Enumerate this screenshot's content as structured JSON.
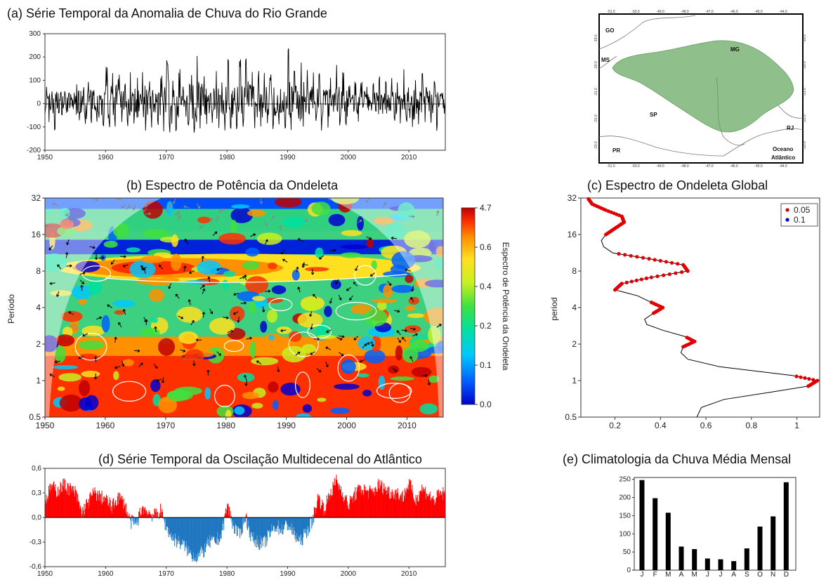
{
  "chart_data": [
    {
      "id": "a",
      "type": "line",
      "title": "(a) Série Temporal da Anomalia de Chuva do Rio Grande",
      "xlim": [
        1950,
        2016
      ],
      "ylim": [
        -200,
        300
      ],
      "xticks": [
        "1950",
        "1960",
        "1970",
        "1980",
        "1990",
        "2000",
        "2010"
      ],
      "yticks": [
        "-200",
        "-100",
        "0",
        "100",
        "200",
        "300"
      ],
      "x": [
        1950,
        1951,
        1952,
        1953,
        1954,
        1955,
        1956,
        1957,
        1958,
        1959,
        1960,
        1961,
        1962,
        1963,
        1964,
        1965,
        1966,
        1967,
        1968,
        1969,
        1970,
        1971,
        1972,
        1973,
        1974,
        1975,
        1976,
        1977,
        1978,
        1979,
        1980,
        1981,
        1982,
        1983,
        1984,
        1985,
        1986,
        1987,
        1988,
        1989,
        1990,
        1991,
        1992,
        1993,
        1994,
        1995,
        1996,
        1997,
        1998,
        1999,
        2000,
        2001,
        2002,
        2003,
        2004,
        2005,
        2006,
        2007,
        2008,
        2009,
        2010,
        2011,
        2012,
        2013,
        2014,
        2015,
        2016
      ],
      "y_max": [
        80,
        60,
        95,
        70,
        90,
        100,
        150,
        110,
        140,
        120,
        160,
        150,
        130,
        90,
        140,
        120,
        150,
        110,
        100,
        130,
        225,
        120,
        150,
        170,
        140,
        210,
        130,
        140,
        150,
        120,
        200,
        160,
        190,
        220,
        150,
        140,
        160,
        130,
        140,
        150,
        245,
        150,
        210,
        160,
        170,
        150,
        140,
        130,
        200,
        140,
        80,
        100,
        110,
        90,
        90,
        120,
        100,
        110,
        100,
        160,
        190,
        130,
        140,
        110,
        100,
        90,
        70
      ],
      "y_min": [
        -90,
        -130,
        -100,
        -110,
        -80,
        -100,
        -120,
        -90,
        -110,
        -100,
        -110,
        -120,
        -110,
        -100,
        -120,
        -140,
        -130,
        -110,
        -100,
        -120,
        -170,
        -120,
        -110,
        -120,
        -130,
        -120,
        -110,
        -100,
        -110,
        -120,
        -130,
        -110,
        -110,
        -120,
        -110,
        -100,
        -90,
        -110,
        -100,
        -110,
        -130,
        -110,
        -120,
        -110,
        -100,
        -120,
        -110,
        -100,
        -110,
        -90,
        -70,
        -80,
        -90,
        -90,
        -80,
        -100,
        -90,
        -80,
        -100,
        -90,
        -110,
        -100,
        -110,
        -90,
        -120,
        -100,
        -80
      ]
    },
    {
      "id": "b",
      "type": "heatmap",
      "title": "(b) Espectro de Potência da Ondeleta",
      "ylabel": "Período",
      "xlim": [
        1950,
        2016
      ],
      "ylim": [
        0.5,
        32
      ],
      "yscale": "log2",
      "xticks": [
        "1950",
        "1960",
        "1970",
        "1980",
        "1990",
        "2000",
        "2010"
      ],
      "yticks": [
        "0.5",
        "1",
        "2",
        "4",
        "8",
        "16",
        "32"
      ],
      "colorbar": {
        "label": "Espectro de Potência da Ondeleta",
        "ticks": [
          "0.0",
          "0.1",
          "0.2",
          "0.4",
          "0.6",
          "4.7"
        ],
        "colors": [
          "#0000d0",
          "#0060ff",
          "#00c8ff",
          "#00e0a0",
          "#40e040",
          "#c8f020",
          "#ffe020",
          "#ff9000",
          "#ff3000",
          "#c00000"
        ]
      }
    },
    {
      "id": "c",
      "type": "line",
      "title": "(c) Espectro de Ondeleta Global",
      "ylabel": "period",
      "xlim": [
        0.05,
        1.1
      ],
      "ylim": [
        0.5,
        32
      ],
      "yscale": "log2",
      "xticks": [
        "0.2",
        "0.4",
        "0.6",
        "0.8",
        "1"
      ],
      "yticks": [
        "0.5",
        "1",
        "2",
        "4",
        "8",
        "16",
        "32"
      ],
      "legend": [
        "0.05",
        "0.1"
      ],
      "legend_colors": [
        "#e00000",
        "#0000e0"
      ],
      "period": [
        0.5,
        0.6,
        0.7,
        0.8,
        0.9,
        1.0,
        1.1,
        1.3,
        1.5,
        1.7,
        1.9,
        2.1,
        2.3,
        2.6,
        2.9,
        3.2,
        3.6,
        4.0,
        4.5,
        5.0,
        5.6,
        6.3,
        7.1,
        8.0,
        9.0,
        10.1,
        11.3,
        12.7,
        14.3,
        16.0,
        18.0,
        20.2,
        22.6,
        25.4,
        28.5,
        32.0
      ],
      "power": [
        0.56,
        0.58,
        0.68,
        0.88,
        1.05,
        1.09,
        0.98,
        0.66,
        0.52,
        0.49,
        0.5,
        0.55,
        0.51,
        0.41,
        0.34,
        0.33,
        0.37,
        0.41,
        0.35,
        0.3,
        0.2,
        0.23,
        0.36,
        0.52,
        0.5,
        0.35,
        0.19,
        0.15,
        0.14,
        0.16,
        0.2,
        0.24,
        0.23,
        0.16,
        0.1,
        0.08
      ],
      "significant": [
        false,
        false,
        false,
        false,
        true,
        true,
        true,
        false,
        false,
        false,
        true,
        true,
        true,
        false,
        false,
        false,
        true,
        true,
        true,
        false,
        true,
        true,
        true,
        true,
        true,
        true,
        true,
        false,
        false,
        true,
        true,
        true,
        true,
        true,
        true,
        true
      ]
    },
    {
      "id": "d",
      "type": "bar",
      "title": "(d) Série Temporal da Oscilação Multidecenal do Atlântico",
      "xlim": [
        1950,
        2016
      ],
      "ylim": [
        -0.6,
        0.6
      ],
      "xticks": [
        "1950",
        "1960",
        "1970",
        "1980",
        "1990",
        "2000",
        "2010"
      ],
      "yticks": [
        "-0,6",
        "-0,3",
        "0,0",
        "0,3",
        "0,6"
      ],
      "positive_color": "#ff0000",
      "negative_color": "#1f77c0",
      "x": [
        1950,
        1951,
        1952,
        1953,
        1954,
        1955,
        1956,
        1957,
        1958,
        1959,
        1960,
        1961,
        1962,
        1963,
        1964,
        1965,
        1966,
        1967,
        1968,
        1969,
        1970,
        1971,
        1972,
        1973,
        1974,
        1975,
        1976,
        1977,
        1978,
        1979,
        1980,
        1981,
        1982,
        1983,
        1984,
        1985,
        1986,
        1987,
        1988,
        1989,
        1990,
        1991,
        1992,
        1993,
        1994,
        1995,
        1996,
        1997,
        1998,
        1999,
        2000,
        2001,
        2002,
        2003,
        2004,
        2005,
        2006,
        2007,
        2008,
        2009,
        2010,
        2011,
        2012,
        2013,
        2014,
        2015,
        2016
      ],
      "values": [
        0.2,
        0.38,
        0.32,
        0.4,
        0.35,
        0.3,
        0.05,
        0.18,
        0.3,
        0.25,
        0.22,
        0.12,
        0.25,
        0.18,
        -0.05,
        -0.08,
        0.12,
        0.06,
        0.02,
        0.08,
        -0.12,
        -0.25,
        -0.3,
        -0.35,
        -0.45,
        -0.48,
        -0.42,
        -0.3,
        -0.3,
        -0.22,
        0.15,
        -0.1,
        -0.22,
        0.02,
        -0.25,
        -0.3,
        -0.32,
        -0.2,
        -0.1,
        -0.15,
        -0.08,
        -0.2,
        -0.3,
        -0.18,
        -0.05,
        0.25,
        0.1,
        0.3,
        0.45,
        0.3,
        0.15,
        0.28,
        0.35,
        0.32,
        0.3,
        0.4,
        0.35,
        0.3,
        0.3,
        0.25,
        0.42,
        0.2,
        0.35,
        0.3,
        0.2,
        0.28,
        0.3
      ]
    },
    {
      "id": "e",
      "type": "bar",
      "title": "(e) Climatologia da Chuva Média Mensal",
      "categories": [
        "J",
        "F",
        "M",
        "A",
        "M",
        "J",
        "J",
        "A",
        "S",
        "O",
        "N",
        "D"
      ],
      "values": [
        248,
        198,
        158,
        65,
        58,
        32,
        30,
        25,
        60,
        120,
        148,
        242
      ],
      "ylim": [
        0,
        250
      ],
      "yticks": [
        "0",
        "50",
        "100",
        "150",
        "200",
        "250"
      ]
    }
  ],
  "map": {
    "states": [
      "GO",
      "MG",
      "MS",
      "SP",
      "RJ",
      "PR"
    ],
    "ocean_label_1": "Oceano",
    "ocean_label_2": "Atlântico",
    "lon_ticks": [
      "-51.0",
      "-50.0",
      "-49.0",
      "-48.0",
      "-47.0",
      "-46.0",
      "-45.0",
      "-44.0"
    ],
    "lat_ticks": [
      "-19.0",
      "-20.0",
      "-21.0",
      "-22.0",
      "-23.0"
    ],
    "basin_color": "#8fbf8a"
  }
}
